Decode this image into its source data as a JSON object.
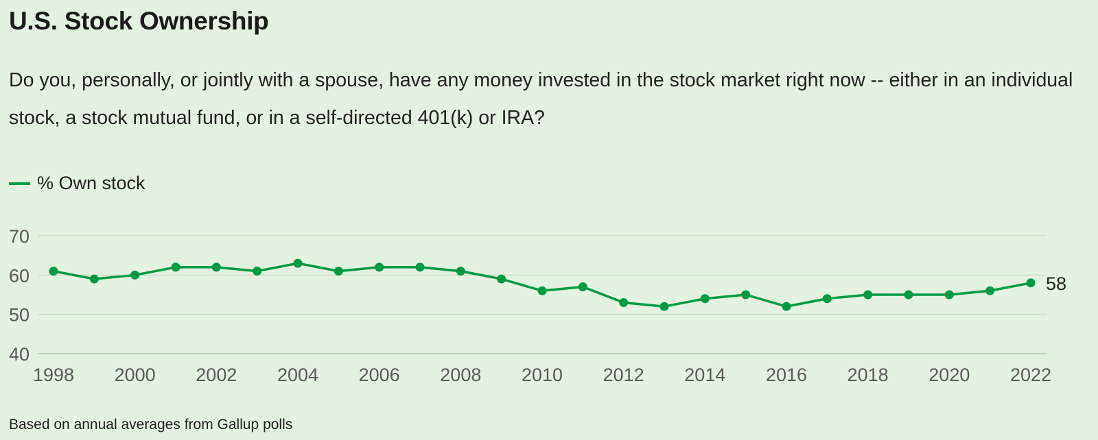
{
  "chart_data": {
    "type": "line",
    "title": "U.S. Stock Ownership",
    "subtitle": "Do you, personally, or jointly with a spouse, have any money invested in the stock market right now -- either in an individual stock, a stock mutual fund, or in a self-directed 401(k) or IRA?",
    "footnote": "Based on annual averages from Gallup polls",
    "xlabel": "",
    "ylabel": "",
    "ylim": [
      40,
      70
    ],
    "yticks": [
      "40",
      "50",
      "60",
      "70"
    ],
    "xlim": [
      1998,
      2022
    ],
    "xticks": [
      "1998",
      "2000",
      "2002",
      "2004",
      "2006",
      "2008",
      "2010",
      "2012",
      "2014",
      "2016",
      "2018",
      "2020",
      "2022"
    ],
    "grid": "horizontal",
    "legend_placement": "top-left",
    "end_label": "58",
    "series": [
      {
        "name": "% Own stock",
        "color": "#009a45",
        "x": [
          1998,
          1999,
          2000,
          2001,
          2002,
          2003,
          2004,
          2005,
          2006,
          2007,
          2008,
          2009,
          2010,
          2011,
          2012,
          2013,
          2014,
          2015,
          2016,
          2017,
          2018,
          2019,
          2020,
          2021,
          2022
        ],
        "values": [
          61,
          59,
          60,
          62,
          62,
          61,
          63,
          61,
          62,
          62,
          61,
          59,
          56,
          57,
          53,
          52,
          54,
          55,
          52,
          54,
          55,
          55,
          55,
          56,
          58
        ]
      }
    ]
  }
}
